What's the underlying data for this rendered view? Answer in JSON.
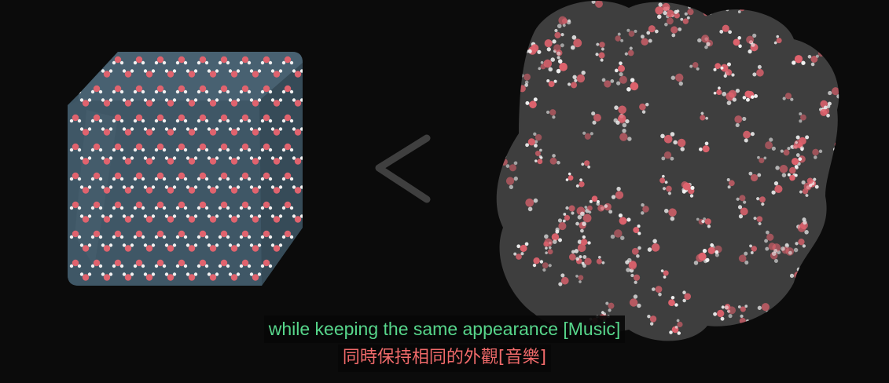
{
  "scene": {
    "background": "#0b0b0b",
    "cube_color": "#3d5564",
    "liquid_color": "#3e3e3e",
    "oxygen_color": "#e0636e",
    "hydrogen_color": "#f2f2f2",
    "comparison_symbol": "<",
    "comparison_color": "#3f3f3f"
  },
  "subtitles": {
    "english": "while keeping the same appearance [Music]",
    "chinese": "同時保持相同的外觀[音樂]",
    "english_color": "#57d68b",
    "chinese_color": "#f06a6a"
  }
}
